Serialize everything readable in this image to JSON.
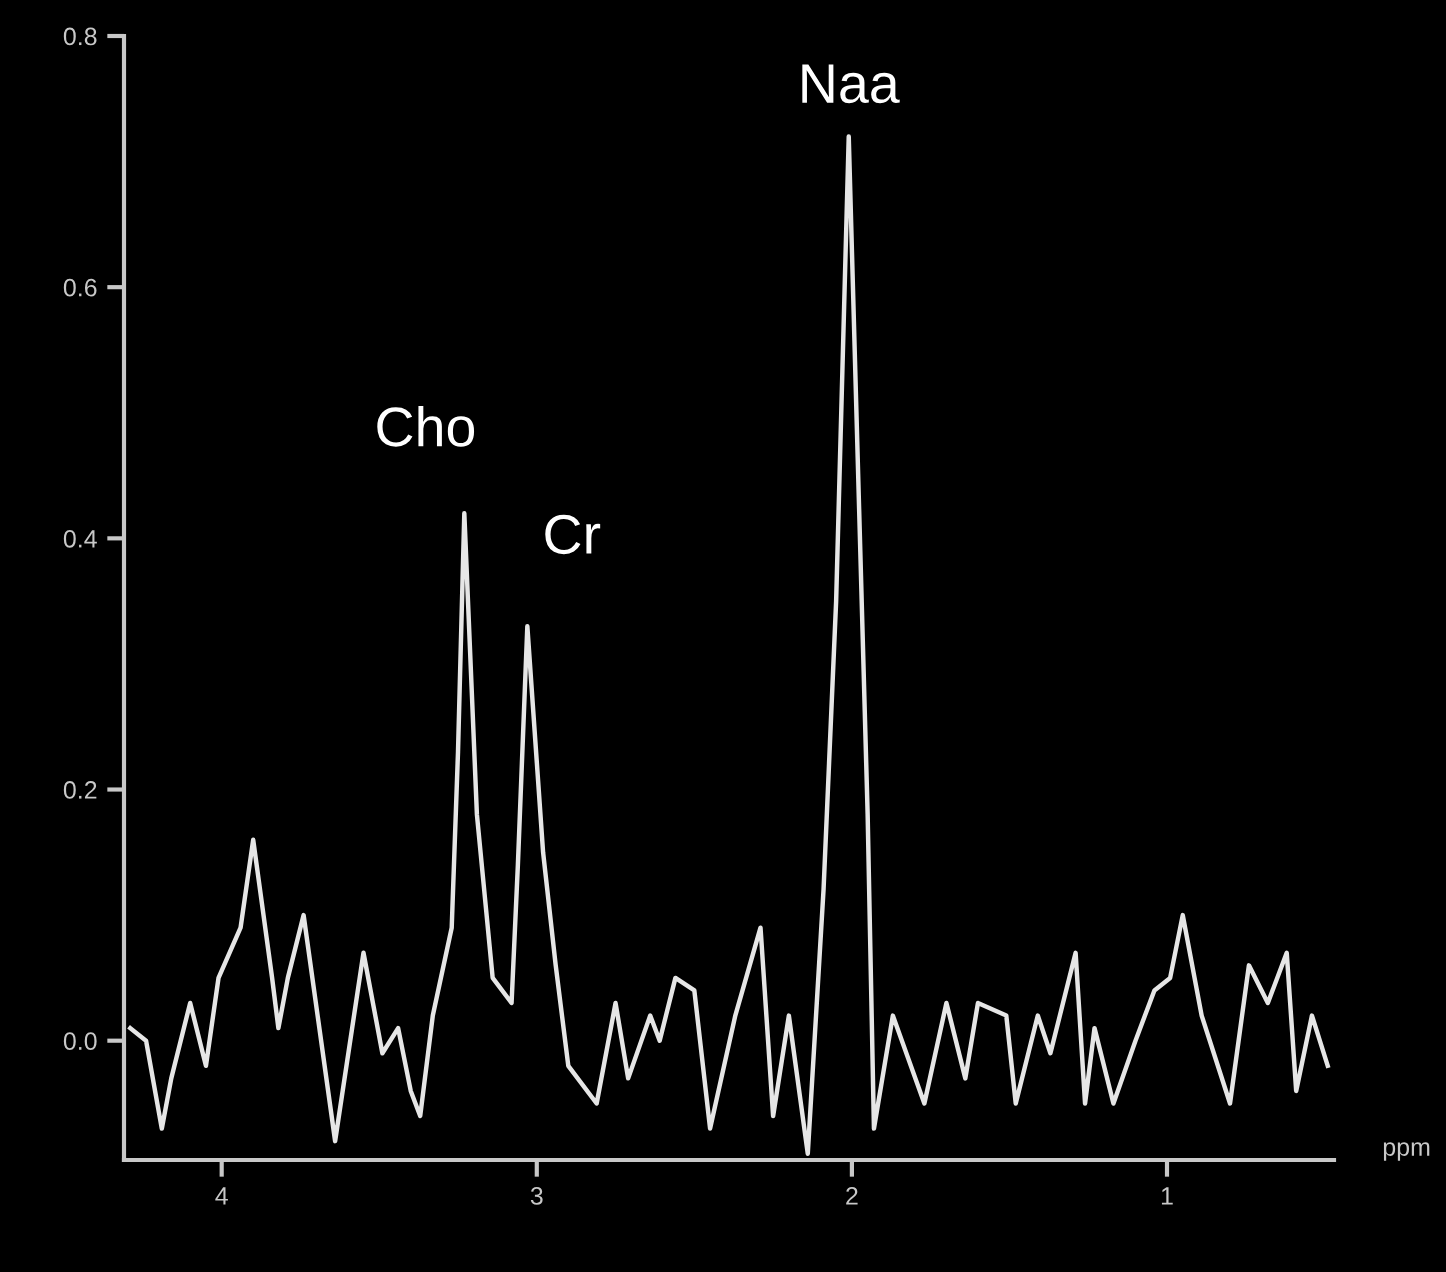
{
  "chart_data": {
    "type": "line",
    "xlabel": "ppm",
    "x": [
      4.29,
      4.24,
      4.19,
      4.16,
      4.1,
      4.05,
      4.01,
      3.94,
      3.9,
      3.84,
      3.82,
      3.79,
      3.74,
      3.64,
      3.55,
      3.49,
      3.44,
      3.4,
      3.37,
      3.33,
      3.27,
      3.25,
      3.23,
      3.19,
      3.14,
      3.08,
      3.06,
      3.03,
      2.98,
      2.94,
      2.9,
      2.81,
      2.75,
      2.71,
      2.64,
      2.61,
      2.56,
      2.5,
      2.45,
      2.37,
      2.29,
      2.25,
      2.2,
      2.14,
      2.09,
      2.05,
      2.01,
      1.95,
      1.93,
      1.87,
      1.77,
      1.7,
      1.64,
      1.6,
      1.51,
      1.48,
      1.41,
      1.37,
      1.29,
      1.26,
      1.23,
      1.17,
      1.1,
      1.04,
      0.99,
      0.95,
      0.89,
      0.8,
      0.74,
      0.68,
      0.62,
      0.59,
      0.54,
      0.49
    ],
    "series": [
      {
        "color": "#e6e6e6",
        "values": [
          0.01,
          0.0,
          -0.07,
          -0.03,
          0.03,
          -0.02,
          0.05,
          0.09,
          0.16,
          0.05,
          0.01,
          0.05,
          0.1,
          -0.08,
          0.07,
          -0.01,
          0.01,
          -0.04,
          -0.06,
          0.02,
          0.09,
          0.23,
          0.42,
          0.18,
          0.05,
          0.03,
          0.14,
          0.33,
          0.15,
          0.06,
          -0.02,
          -0.05,
          0.03,
          -0.03,
          0.02,
          0.0,
          0.05,
          0.04,
          -0.07,
          0.02,
          0.09,
          -0.06,
          0.02,
          -0.09,
          0.12,
          0.35,
          0.72,
          0.18,
          -0.07,
          0.02,
          -0.05,
          0.03,
          -0.03,
          0.03,
          0.02,
          -0.05,
          0.02,
          -0.01,
          0.07,
          -0.05,
          0.01,
          -0.05,
          0.0,
          0.04,
          0.05,
          0.1,
          0.02,
          -0.05,
          0.06,
          0.03,
          0.07,
          -0.04,
          0.02,
          -0.02
        ]
      }
    ],
    "xlim": [
      4.31,
      0.47
    ],
    "ylim": [
      -0.095,
      0.8
    ],
    "xticks": [
      4,
      3,
      2,
      1
    ],
    "yticks": [
      {
        "value": 0,
        "label": "0.0"
      },
      {
        "value": 0.2,
        "label": "0.2"
      },
      {
        "value": 0.4,
        "label": "0.4"
      },
      {
        "value": 0.6,
        "label": "0.6"
      },
      {
        "value": 0.8,
        "label": "0.8"
      }
    ],
    "annotations": [
      {
        "text": "Cho",
        "x": 3.23,
        "y": 0.42
      },
      {
        "text": "Cr",
        "x": 3.03,
        "y": 0.33
      },
      {
        "text": "Naa",
        "x": 2.01,
        "y": 0.72
      }
    ],
    "grid": false,
    "legend": false,
    "marker": "none",
    "line_style": "solid"
  }
}
